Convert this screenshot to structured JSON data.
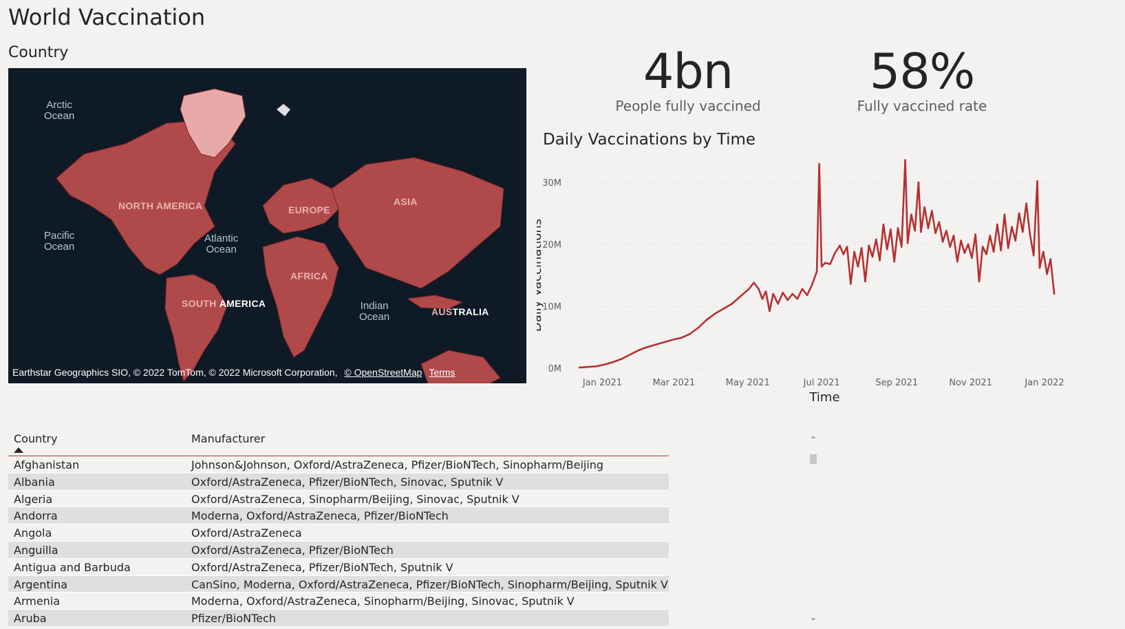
{
  "page": {
    "title": "World Vaccination"
  },
  "map": {
    "title": "Country",
    "labels": {
      "arctic": [
        "Arctic",
        "Ocean"
      ],
      "pacific": [
        "Pacific",
        "Ocean"
      ],
      "atlantic": [
        "Atlantic",
        "Ocean"
      ],
      "indian": [
        "Indian",
        "Ocean"
      ],
      "north_america": "NORTH AMERICA",
      "south_america_a": "SOUTH",
      "south_america_b": "AMERICA",
      "europe": "EUROPE",
      "asia": "ASIA",
      "africa": "AFRICA",
      "australia_a": "AUS",
      "australia_b": "TRALIA"
    },
    "attribution": {
      "text": "Earthstar Geographics SIO, © 2022 TomTom, © 2022 Microsoft Corporation,",
      "osm_link": "© OpenStreetMap",
      "terms_link": "Terms"
    },
    "colors": {
      "ocean": "#0e1a26",
      "highlight": "#b5302f",
      "greenland": "#e8a9a9"
    }
  },
  "kpis": [
    {
      "value": "4bn",
      "label": "People fully vaccined"
    },
    {
      "value": "58%",
      "label": "Fully vaccined rate"
    }
  ],
  "chart_data": {
    "type": "line",
    "title": "Daily Vaccinations by Time",
    "xlabel": "Time",
    "ylabel": "Daily Vaccinations",
    "x_ticks": [
      "Jan 2021",
      "Mar 2021",
      "May 2021",
      "Jul 2021",
      "Sep 2021",
      "Nov 2021",
      "Jan 2022"
    ],
    "y_ticks": [
      "0M",
      "10M",
      "20M",
      "30M"
    ],
    "ylim": [
      0,
      30000000
    ],
    "xlim": [
      "2020-12-13",
      "2022-01-22"
    ],
    "grid": true,
    "color": "#b5302f",
    "series": [
      {
        "name": "",
        "points": [
          [
            "2020-12-13",
            0.1
          ],
          [
            "2020-12-27",
            0.3
          ],
          [
            "2021-01-03",
            0.6
          ],
          [
            "2021-01-10",
            1.0
          ],
          [
            "2021-01-17",
            1.5
          ],
          [
            "2021-01-24",
            2.2
          ],
          [
            "2021-01-31",
            2.9
          ],
          [
            "2021-02-07",
            3.4
          ],
          [
            "2021-02-14",
            3.8
          ],
          [
            "2021-02-21",
            4.2
          ],
          [
            "2021-02-28",
            4.6
          ],
          [
            "2021-03-07",
            4.9
          ],
          [
            "2021-03-14",
            5.5
          ],
          [
            "2021-03-21",
            6.5
          ],
          [
            "2021-03-28",
            7.8
          ],
          [
            "2021-04-04",
            8.8
          ],
          [
            "2021-04-11",
            9.6
          ],
          [
            "2021-04-18",
            10.4
          ],
          [
            "2021-04-25",
            11.6
          ],
          [
            "2021-05-02",
            12.8
          ],
          [
            "2021-05-06",
            13.8
          ],
          [
            "2021-05-10",
            12.8
          ],
          [
            "2021-05-13",
            11.2
          ],
          [
            "2021-05-16",
            12.4
          ],
          [
            "2021-05-19",
            9.2
          ],
          [
            "2021-05-22",
            12.0
          ],
          [
            "2021-05-26",
            10.4
          ],
          [
            "2021-05-30",
            12.2
          ],
          [
            "2021-06-03",
            11.0
          ],
          [
            "2021-06-07",
            12.0
          ],
          [
            "2021-06-11",
            11.2
          ],
          [
            "2021-06-15",
            12.8
          ],
          [
            "2021-06-19",
            11.8
          ],
          [
            "2021-06-23",
            13.4
          ],
          [
            "2021-06-27",
            15.6
          ],
          [
            "2021-06-29",
            33.0
          ],
          [
            "2021-07-01",
            16.4
          ],
          [
            "2021-07-04",
            17.0
          ],
          [
            "2021-07-08",
            16.8
          ],
          [
            "2021-07-12",
            18.6
          ],
          [
            "2021-07-16",
            19.8
          ],
          [
            "2021-07-19",
            18.4
          ],
          [
            "2021-07-22",
            19.6
          ],
          [
            "2021-07-25",
            13.6
          ],
          [
            "2021-07-28",
            18.8
          ],
          [
            "2021-07-31",
            16.4
          ],
          [
            "2021-08-03",
            19.4
          ],
          [
            "2021-08-06",
            14.0
          ],
          [
            "2021-08-09",
            19.8
          ],
          [
            "2021-08-12",
            18.0
          ],
          [
            "2021-08-15",
            20.8
          ],
          [
            "2021-08-18",
            17.4
          ],
          [
            "2021-08-21",
            23.2
          ],
          [
            "2021-08-24",
            19.2
          ],
          [
            "2021-08-27",
            22.4
          ],
          [
            "2021-08-30",
            17.2
          ],
          [
            "2021-09-02",
            22.6
          ],
          [
            "2021-09-05",
            19.6
          ],
          [
            "2021-09-08",
            33.6
          ],
          [
            "2021-09-10",
            20.2
          ],
          [
            "2021-09-13",
            24.8
          ],
          [
            "2021-09-16",
            22.2
          ],
          [
            "2021-09-19",
            30.0
          ],
          [
            "2021-09-21",
            22.0
          ],
          [
            "2021-09-24",
            26.0
          ],
          [
            "2021-09-27",
            22.6
          ],
          [
            "2021-09-30",
            25.4
          ],
          [
            "2021-10-03",
            21.8
          ],
          [
            "2021-10-06",
            23.6
          ],
          [
            "2021-10-09",
            20.4
          ],
          [
            "2021-10-12",
            22.2
          ],
          [
            "2021-10-15",
            19.6
          ],
          [
            "2021-10-18",
            21.4
          ],
          [
            "2021-10-21",
            17.2
          ],
          [
            "2021-10-24",
            20.6
          ],
          [
            "2021-10-27",
            18.6
          ],
          [
            "2021-10-30",
            20.0
          ],
          [
            "2021-11-02",
            17.8
          ],
          [
            "2021-11-05",
            21.6
          ],
          [
            "2021-11-08",
            14.0
          ],
          [
            "2021-11-11",
            19.6
          ],
          [
            "2021-11-14",
            18.4
          ],
          [
            "2021-11-17",
            21.4
          ],
          [
            "2021-11-20",
            18.8
          ],
          [
            "2021-11-23",
            23.2
          ],
          [
            "2021-11-26",
            19.0
          ],
          [
            "2021-11-29",
            24.8
          ],
          [
            "2021-12-02",
            19.4
          ],
          [
            "2021-12-05",
            22.8
          ],
          [
            "2021-12-08",
            20.6
          ],
          [
            "2021-12-11",
            25.0
          ],
          [
            "2021-12-14",
            22.0
          ],
          [
            "2021-12-17",
            26.6
          ],
          [
            "2021-12-20",
            21.6
          ],
          [
            "2021-12-23",
            18.2
          ],
          [
            "2021-12-26",
            30.2
          ],
          [
            "2021-12-28",
            16.2
          ],
          [
            "2021-12-31",
            18.8
          ],
          [
            "2022-01-03",
            15.2
          ],
          [
            "2022-01-06",
            17.6
          ],
          [
            "2022-01-09",
            12.0
          ]
        ]
      }
    ]
  },
  "table": {
    "columns": [
      "Country",
      "Manufacturer"
    ],
    "sort": {
      "column": "Country",
      "direction": "ascending"
    },
    "rows": [
      [
        "Afghanistan",
        "Johnson&Johnson, Oxford/AstraZeneca, Pfizer/BioNTech, Sinopharm/Beijing"
      ],
      [
        "Albania",
        "Oxford/AstraZeneca, Pfizer/BioNTech, Sinovac, Sputnik V"
      ],
      [
        "Algeria",
        "Oxford/AstraZeneca, Sinopharm/Beijing, Sinovac, Sputnik V"
      ],
      [
        "Andorra",
        "Moderna, Oxford/AstraZeneca, Pfizer/BioNTech"
      ],
      [
        "Angola",
        "Oxford/AstraZeneca"
      ],
      [
        "Anguilla",
        "Oxford/AstraZeneca, Pfizer/BioNTech"
      ],
      [
        "Antigua and Barbuda",
        "Oxford/AstraZeneca, Pfizer/BioNTech, Sputnik V"
      ],
      [
        "Argentina",
        "CanSino, Moderna, Oxford/AstraZeneca, Pfizer/BioNTech, Sinopharm/Beijing, Sputnik V"
      ],
      [
        "Armenia",
        "Moderna, Oxford/AstraZeneca, Sinopharm/Beijing, Sinovac, Sputnik V"
      ],
      [
        "Aruba",
        "Pfizer/BioNTech"
      ]
    ]
  },
  "scrollbar": {
    "up_icon": "chevron-up-icon",
    "down_icon": "chevron-down-icon"
  }
}
